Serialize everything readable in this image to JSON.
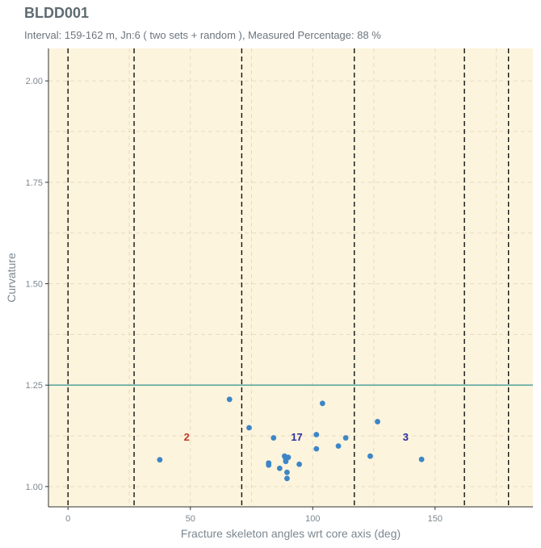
{
  "chart_data": {
    "type": "scatter",
    "title": "BLDD001",
    "subtitle": "Interval: 159-162 m,  Jn:6 ( two sets + random ), Measured Percentage: 88 %",
    "xlabel": "Fracture skeleton angles wrt core axis (deg)",
    "ylabel": "Curvature",
    "xlim": [
      -8,
      190
    ],
    "ylim": [
      0.95,
      2.08
    ],
    "x_ticks": [
      0,
      50,
      100,
      150
    ],
    "y_ticks": [
      1.0,
      1.25,
      1.5,
      1.75,
      2.0
    ],
    "x_tick_labels": [
      "0",
      "50",
      "100",
      "150"
    ],
    "y_tick_labels": [
      "1.00",
      "1.25",
      "1.50",
      "1.75",
      "2.00"
    ],
    "threshold_line": {
      "y": 1.25,
      "color": "#5fa8a0"
    },
    "vertical_dashed_lines_x": [
      0,
      27,
      71,
      117,
      162,
      180
    ],
    "background_color": "#fdf4dd",
    "point_color": "#3d86c6",
    "points": [
      {
        "x": 37.5,
        "y": 1.066
      },
      {
        "x": 66,
        "y": 1.215
      },
      {
        "x": 74,
        "y": 1.145
      },
      {
        "x": 82,
        "y": 1.058
      },
      {
        "x": 82,
        "y": 1.053
      },
      {
        "x": 84,
        "y": 1.12
      },
      {
        "x": 86.5,
        "y": 1.045
      },
      {
        "x": 88.5,
        "y": 1.075
      },
      {
        "x": 89,
        "y": 1.068
      },
      {
        "x": 89,
        "y": 1.062
      },
      {
        "x": 89.5,
        "y": 1.035
      },
      {
        "x": 89.5,
        "y": 1.02
      },
      {
        "x": 90,
        "y": 1.072
      },
      {
        "x": 94.5,
        "y": 1.055
      },
      {
        "x": 101.5,
        "y": 1.128
      },
      {
        "x": 101.5,
        "y": 1.093
      },
      {
        "x": 104,
        "y": 1.205
      },
      {
        "x": 110.5,
        "y": 1.1
      },
      {
        "x": 113.5,
        "y": 1.12
      },
      {
        "x": 123.5,
        "y": 1.075
      },
      {
        "x": 126.5,
        "y": 1.16
      },
      {
        "x": 144.5,
        "y": 1.067
      }
    ],
    "annotations": [
      {
        "text": "2",
        "x": 48.5,
        "y": 1.123,
        "color": "#c0392b"
      },
      {
        "text": "17",
        "x": 93.5,
        "y": 1.123,
        "color": "#2c2c9c"
      },
      {
        "text": "3",
        "x": 138,
        "y": 1.123,
        "color": "#2c2c9c"
      }
    ]
  }
}
